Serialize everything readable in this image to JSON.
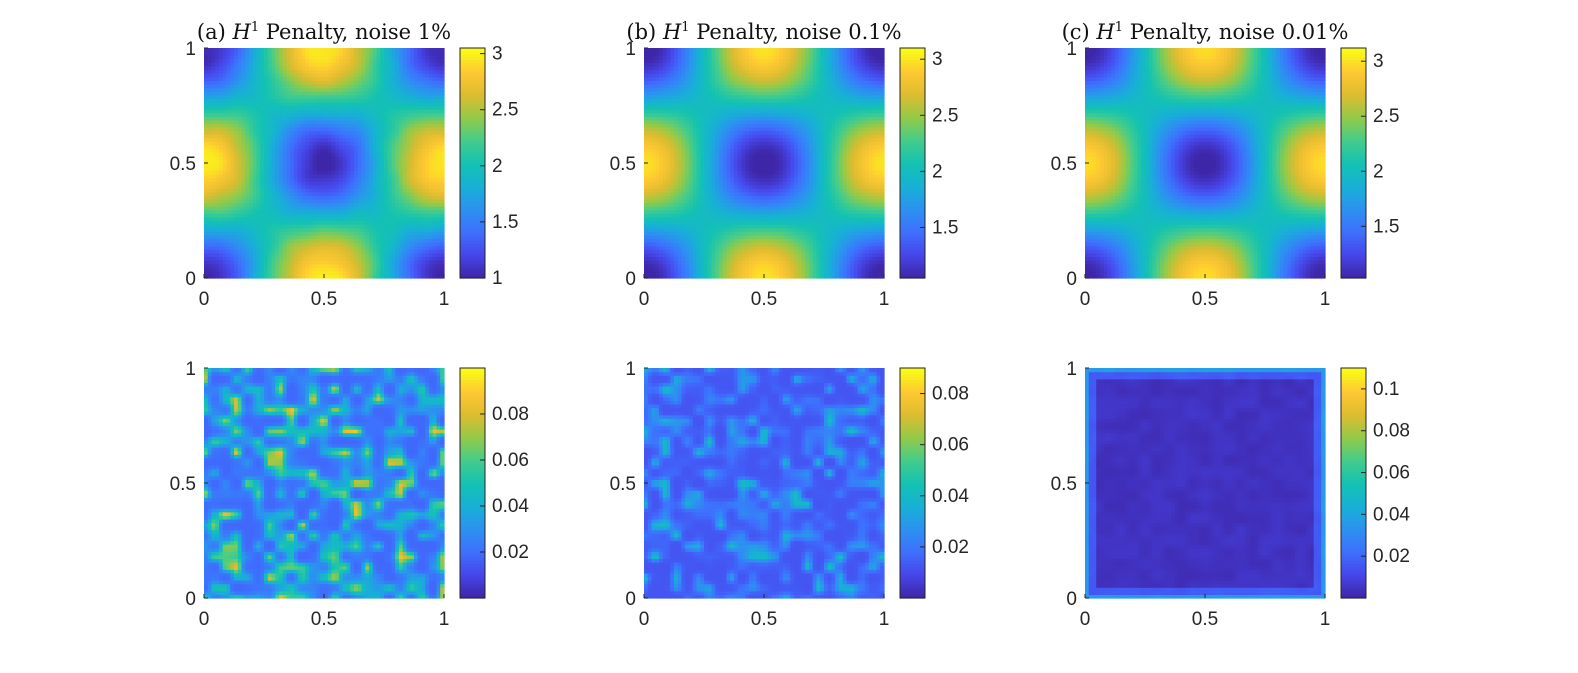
{
  "colormap": "parula",
  "colors": {
    "parula_low": "#3e26a8",
    "parula_high": "#f9fb15",
    "axis": "#262626",
    "background": "#ffffff"
  },
  "chart_data": [
    {
      "type": "heatmap",
      "panel": "a-solution",
      "title": {
        "prefix": "(a) ",
        "sym": "H",
        "sup": "1",
        "rest": " Penalty, noise 1%"
      },
      "x": {
        "range": [
          0,
          1
        ],
        "ticks": [
          "0",
          "0.5",
          "1"
        ]
      },
      "y": {
        "range": [
          0,
          1
        ],
        "ticks": [
          "0",
          "0.5",
          "1"
        ]
      },
      "field": "2 - cos(2*pi*x)*cos(2*pi*y)",
      "noise": 0.05,
      "clim": [
        1,
        3.05
      ],
      "colorbar": {
        "ticks": [
          1,
          1.5,
          2,
          2.5,
          3
        ],
        "labels": [
          "1",
          "1.5",
          "2",
          "2.5",
          "3"
        ]
      }
    },
    {
      "type": "heatmap",
      "panel": "b-solution",
      "title": {
        "prefix": "(b) ",
        "sym": "H",
        "sup": "1",
        "rest": " Penalty, noise 0.1%"
      },
      "x": {
        "range": [
          0,
          1
        ],
        "ticks": [
          "0",
          "0.5",
          "1"
        ]
      },
      "y": {
        "range": [
          0,
          1
        ],
        "ticks": [
          "0",
          "0.5",
          "1"
        ]
      },
      "field": "2 - cos(2*pi*x)*cos(2*pi*y)",
      "noise": 0.01,
      "clim": [
        1.05,
        3.1
      ],
      "colorbar": {
        "ticks": [
          1.5,
          2,
          2.5,
          3
        ],
        "labels": [
          "1.5",
          "2",
          "2.5",
          "3"
        ]
      }
    },
    {
      "type": "heatmap",
      "panel": "c-solution",
      "title": {
        "prefix": "(c) ",
        "sym": "H",
        "sup": "1",
        "rest": " Penalty, noise 0.01%"
      },
      "x": {
        "range": [
          0,
          1
        ],
        "ticks": [
          "0",
          "0.5",
          "1"
        ]
      },
      "y": {
        "range": [
          0,
          1
        ],
        "ticks": [
          "0",
          "0.5",
          "1"
        ]
      },
      "field": "2 - cos(2*pi*x)*cos(2*pi*y)",
      "noise": 0.0,
      "clim": [
        1.03,
        3.12
      ],
      "colorbar": {
        "ticks": [
          1.5,
          2,
          2.5,
          3
        ],
        "labels": [
          "1.5",
          "2",
          "2.5",
          "3"
        ]
      }
    },
    {
      "type": "heatmap",
      "panel": "a-error",
      "x": {
        "range": [
          0,
          1
        ],
        "ticks": [
          "0",
          "0.5",
          "1"
        ]
      },
      "y": {
        "range": [
          0,
          1
        ],
        "ticks": [
          "0",
          "0.5",
          "1"
        ]
      },
      "field": "pointwise error (noisy)",
      "base": 0.018,
      "noise_amp": 0.045,
      "clim": [
        0,
        0.1
      ],
      "colorbar": {
        "ticks": [
          0.02,
          0.04,
          0.06,
          0.08
        ],
        "labels": [
          "0.02",
          "0.04",
          "0.06",
          "0.08"
        ]
      }
    },
    {
      "type": "heatmap",
      "panel": "b-error",
      "x": {
        "range": [
          0,
          1
        ],
        "ticks": [
          "0",
          "0.5",
          "1"
        ]
      },
      "y": {
        "range": [
          0,
          1
        ],
        "ticks": [
          "0",
          "0.5",
          "1"
        ]
      },
      "field": "pointwise error (noisy)",
      "base": 0.012,
      "noise_amp": 0.02,
      "clim": [
        0,
        0.09
      ],
      "colorbar": {
        "ticks": [
          0.02,
          0.04,
          0.06,
          0.08
        ],
        "labels": [
          "0.02",
          "0.04",
          "0.06",
          "0.08"
        ]
      }
    },
    {
      "type": "heatmap",
      "panel": "c-error",
      "x": {
        "range": [
          0,
          1
        ],
        "ticks": [
          "0",
          "0.5",
          "1"
        ]
      },
      "y": {
        "range": [
          0,
          1
        ],
        "ticks": [
          "0",
          "0.5",
          "1"
        ]
      },
      "field": "pointwise error (boundary)",
      "base": 0.004,
      "noise_amp": 0.004,
      "clim": [
        0,
        0.11
      ],
      "colorbar": {
        "ticks": [
          0.02,
          0.04,
          0.06,
          0.08,
          0.1
        ],
        "labels": [
          "0.02",
          "0.04",
          "0.06",
          "0.08",
          "0.1"
        ]
      }
    }
  ]
}
